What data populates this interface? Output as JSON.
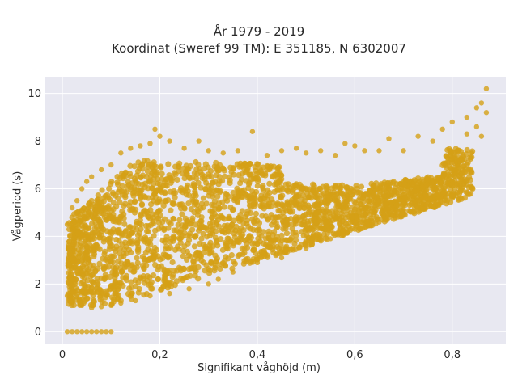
{
  "chart_data": {
    "type": "scatter",
    "title": "År 1979 - 2019",
    "subtitle": "Koordinat (Sweref 99 TM): E 351185, N 6302007",
    "xlabel": "Signifikant våghöjd (m)",
    "ylabel": "Vågperiod (s)",
    "xlim": [
      -0.035,
      0.91
    ],
    "ylim": [
      -0.5,
      10.7
    ],
    "x_ticks": [
      0,
      0.2,
      0.4,
      0.6,
      0.8
    ],
    "x_tick_labels": [
      "0",
      "0,2",
      "0,4",
      "0,6",
      "0,8"
    ],
    "y_ticks": [
      0,
      2,
      4,
      6,
      8,
      10
    ],
    "y_tick_labels": [
      "0",
      "2",
      "4",
      "6",
      "8",
      "10"
    ],
    "grid": true,
    "legend": "none",
    "colors": {
      "marker": "#d4a017",
      "plot_bg": "#e8e8f1",
      "grid": "#ffffff"
    },
    "series": [
      {
        "points": [
          [
            0.01,
            0.0
          ],
          [
            0.02,
            0.0
          ],
          [
            0.03,
            0.0
          ],
          [
            0.04,
            0.0
          ],
          [
            0.05,
            0.0
          ],
          [
            0.06,
            0.0
          ],
          [
            0.07,
            0.0
          ],
          [
            0.08,
            0.0
          ],
          [
            0.09,
            0.0
          ],
          [
            0.1,
            0.0
          ],
          [
            0.01,
            4.5
          ],
          [
            0.02,
            5.2
          ],
          [
            0.03,
            5.5
          ],
          [
            0.04,
            6.0
          ],
          [
            0.05,
            6.3
          ],
          [
            0.06,
            6.5
          ],
          [
            0.08,
            6.8
          ],
          [
            0.1,
            7.0
          ],
          [
            0.12,
            7.5
          ],
          [
            0.14,
            7.7
          ],
          [
            0.16,
            7.8
          ],
          [
            0.18,
            7.9
          ],
          [
            0.19,
            8.5
          ],
          [
            0.2,
            8.2
          ],
          [
            0.22,
            8.0
          ],
          [
            0.01,
            1.5
          ],
          [
            0.02,
            1.3
          ],
          [
            0.04,
            1.1
          ],
          [
            0.06,
            1.0
          ],
          [
            0.08,
            1.05
          ],
          [
            0.1,
            1.1
          ],
          [
            0.12,
            1.2
          ],
          [
            0.15,
            1.3
          ],
          [
            0.18,
            1.5
          ],
          [
            0.22,
            1.6
          ],
          [
            0.26,
            1.8
          ],
          [
            0.3,
            2.0
          ],
          [
            0.32,
            2.2
          ],
          [
            0.35,
            2.5
          ],
          [
            0.4,
            2.9
          ],
          [
            0.45,
            3.1
          ],
          [
            0.25,
            7.7
          ],
          [
            0.28,
            8.0
          ],
          [
            0.3,
            7.6
          ],
          [
            0.33,
            7.5
          ],
          [
            0.36,
            7.6
          ],
          [
            0.39,
            8.4
          ],
          [
            0.42,
            7.4
          ],
          [
            0.45,
            7.6
          ],
          [
            0.48,
            7.7
          ],
          [
            0.5,
            7.5
          ],
          [
            0.53,
            7.6
          ],
          [
            0.56,
            7.4
          ],
          [
            0.58,
            7.9
          ],
          [
            0.6,
            7.8
          ],
          [
            0.62,
            7.6
          ],
          [
            0.65,
            7.6
          ],
          [
            0.67,
            8.1
          ],
          [
            0.7,
            7.6
          ],
          [
            0.73,
            8.2
          ],
          [
            0.76,
            8.0
          ],
          [
            0.78,
            8.5
          ],
          [
            0.8,
            8.8
          ],
          [
            0.83,
            9.0
          ],
          [
            0.85,
            9.4
          ],
          [
            0.86,
            9.6
          ],
          [
            0.87,
            10.2
          ],
          [
            0.5,
            3.5
          ],
          [
            0.55,
            3.9
          ],
          [
            0.6,
            4.3
          ],
          [
            0.65,
            4.6
          ],
          [
            0.7,
            5.0
          ],
          [
            0.75,
            5.4
          ],
          [
            0.8,
            6.2
          ],
          [
            0.84,
            7.5
          ],
          [
            0.86,
            8.2
          ],
          [
            0.87,
            9.2
          ],
          [
            0.85,
            8.6
          ],
          [
            0.83,
            8.3
          ]
        ]
      }
    ]
  }
}
